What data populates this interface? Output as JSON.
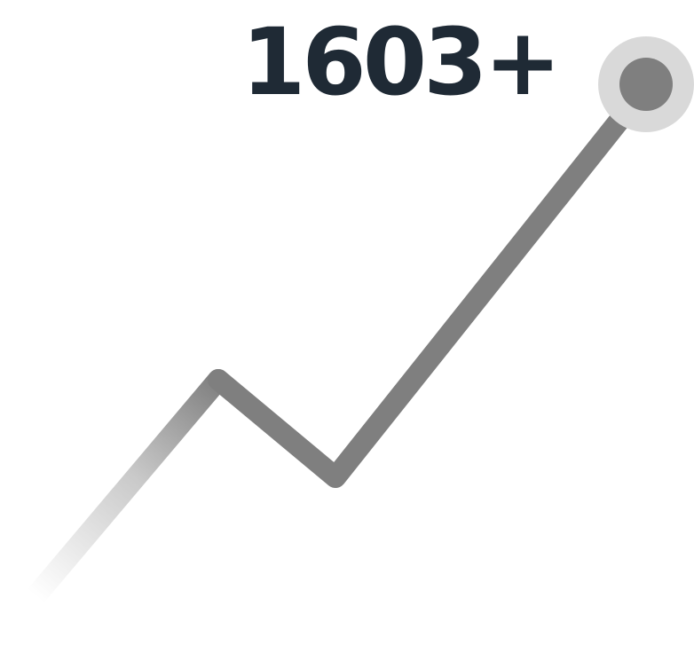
{
  "stat": {
    "value_label": "1603+"
  },
  "graphic": {
    "icon": "trend-up-line",
    "line_color": "#7f7f7f",
    "fade_color": "#ffffff",
    "end_marker_color": "#7f7f7f",
    "end_marker_halo_color": "#d9d9d9",
    "value_text_color": "#1f2a35"
  }
}
